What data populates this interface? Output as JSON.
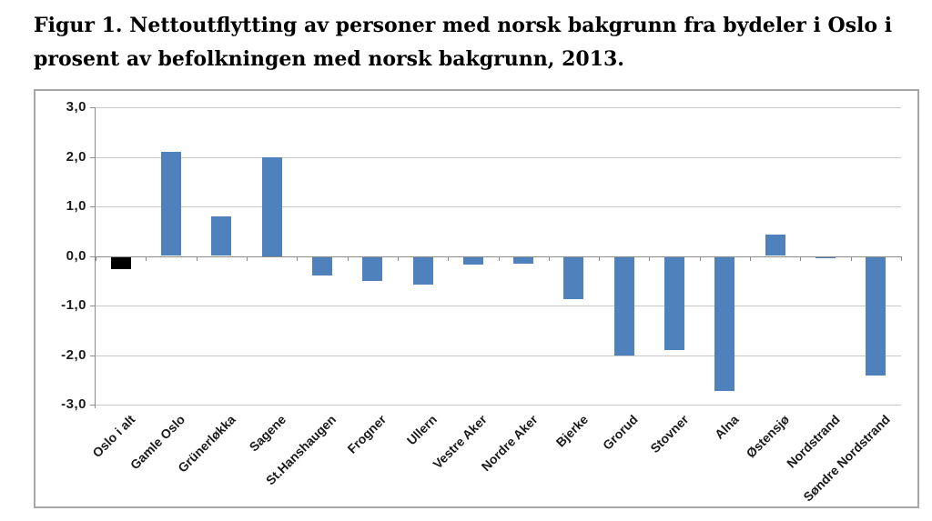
{
  "page": {
    "background": "#ffffff"
  },
  "title_lines": [
    "Figur 1. Nettoutflytting av personer med norsk bakgrunn fra bydeler i Oslo i",
    "prosent av befolkningen med norsk bakgrunn, 2013."
  ],
  "chart_data": {
    "type": "bar",
    "title": "Figur 1. Nettoutflytting av personer med norsk bakgrunn fra bydeler i Oslo i prosent av befolkningen med norsk bakgrunn, 2013.",
    "categories": [
      "Oslo i alt",
      "Gamle Oslo",
      "Grünerløkka",
      "Sagene",
      "St.Hanshaugen",
      "Frogner",
      "Ullern",
      "Vestre Aker",
      "Nordre Aker",
      "Bjerke",
      "Grorud",
      "Stovner",
      "Alna",
      "Østensjø",
      "Nordstrand",
      "Søndre Nordstrand"
    ],
    "values": [
      -0.27,
      2.1,
      0.8,
      2.0,
      -0.4,
      -0.5,
      -0.57,
      -0.18,
      -0.16,
      -0.87,
      -2.0,
      -1.9,
      -2.73,
      0.43,
      -0.05,
      -2.42
    ],
    "bar_colors": [
      "#000000",
      "#4f81bd",
      "#4f81bd",
      "#4f81bd",
      "#4f81bd",
      "#4f81bd",
      "#4f81bd",
      "#4f81bd",
      "#4f81bd",
      "#4f81bd",
      "#4f81bd",
      "#4f81bd",
      "#4f81bd",
      "#4f81bd",
      "#4f81bd",
      "#4f81bd"
    ],
    "xlabel": "",
    "ylabel": "",
    "ylim": [
      -3.0,
      3.0
    ],
    "ytick_step": 1.0,
    "ytick_labels": [
      "3,0",
      "2,0",
      "1,0",
      "0,0",
      "-1,0",
      "-2,0",
      "-3,0"
    ],
    "decimal_separator": ",",
    "grid": true,
    "legend_position": "none",
    "highlight_category": "Oslo i alt",
    "highlight_color": "#000000",
    "series_color": "#4f81bd"
  },
  "colors": {
    "frame_border": "#a6a6a6",
    "gridline": "#c9c9c9",
    "axis": "#8c8c8c",
    "text": "#1a1a1a",
    "background": "#ffffff"
  }
}
